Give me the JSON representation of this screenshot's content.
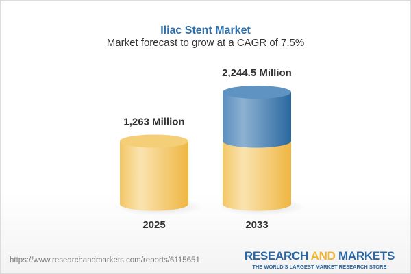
{
  "title": "Iliac Stent Market",
  "subtitle": "Market forecast to grow at a CAGR of 7.5%",
  "chart_data": {
    "type": "bar",
    "style": "3d-cylinder",
    "categories": [
      "2025",
      "2033"
    ],
    "values": [
      1263,
      2244.5
    ],
    "data_labels": [
      "1,263 Million",
      "2,244.5 Million"
    ],
    "unit": "Million",
    "cagr": "7.5%",
    "colors": {
      "base": "#f2c45c",
      "growth": "#3f7db5"
    }
  },
  "footer": {
    "url": "https://www.researchandmarkets.com/reports/6115651",
    "logo_part1": "RESEARCH ",
    "logo_part2": "AND",
    "logo_part3": " MARKETS",
    "logo_tagline": "THE WORLD'S LARGEST MARKET RESEARCH STORE"
  }
}
